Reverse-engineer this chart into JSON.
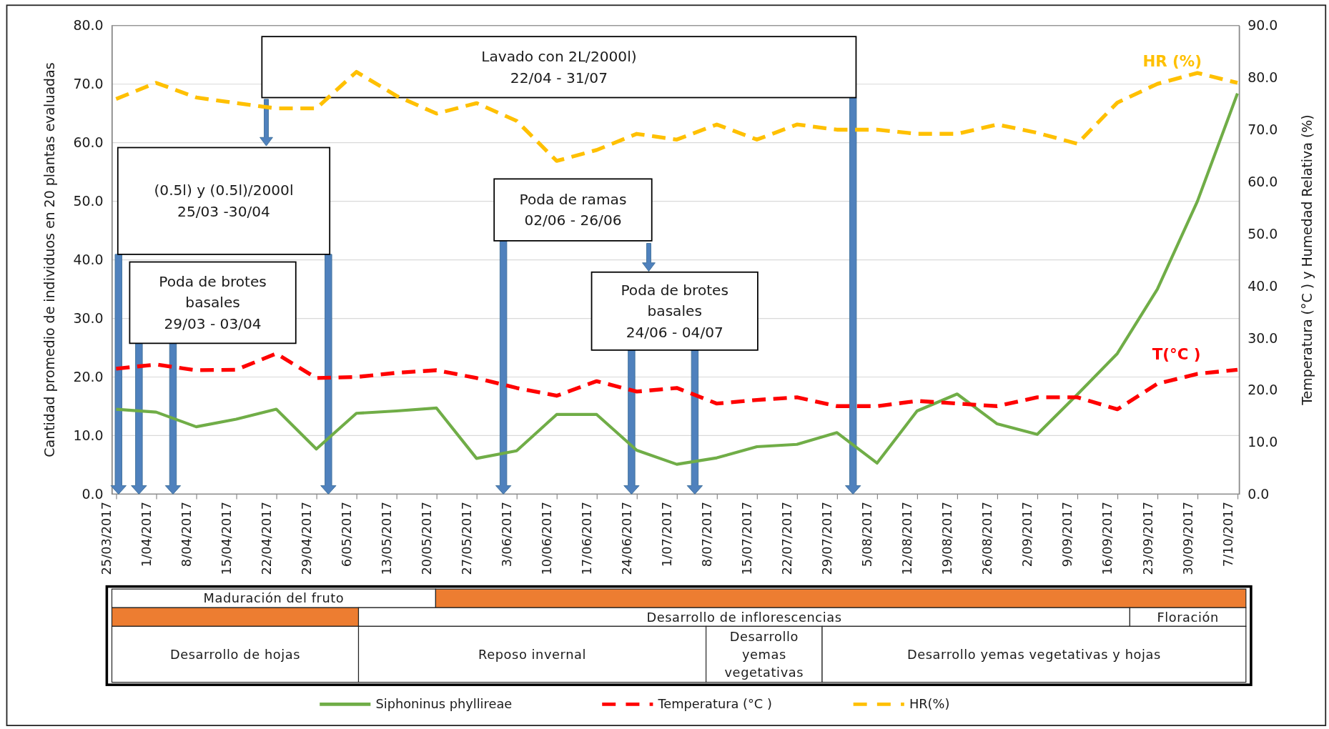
{
  "chart_data": {
    "type": "line",
    "ylabel": "Cantidad promedio de individuos en 20 plantas evaluadas",
    "y2label": "Temperatura (°C )  y Humedad Relativa (%)",
    "categories": [
      "25/03/2017",
      "1/04/2017",
      "8/04/2017",
      "15/04/2017",
      "22/04/2017",
      "29/04/2017",
      "6/05/2017",
      "13/05/2017",
      "20/05/2017",
      "27/05/2017",
      "3/06/2017",
      "10/06/2017",
      "17/06/2017",
      "24/06/2017",
      "1/07/2017",
      "8/07/2017",
      "15/07/2017",
      "22/07/2017",
      "29/07/2017",
      "5/08/2017",
      "12/08/2017",
      "19/08/2017",
      "26/08/2017",
      "2/09/2017",
      "9/09/2017",
      "16/09/2017",
      "23/09/2017",
      "30/09/2017",
      "7/10/2017"
    ],
    "series": [
      {
        "name": "Siphoninus phyllireae",
        "color": "#70ad47",
        "line_style": "solid",
        "values": [
          14.5,
          14.0,
          11.5,
          12.8,
          14.5,
          7.7,
          13.8,
          14.2,
          14.7,
          6.1,
          7.4,
          13.6,
          13.6,
          7.5,
          5.1,
          6.2,
          8.1,
          8.5,
          10.5,
          5.3,
          14.2,
          17.1,
          12.0,
          10.2,
          17.0,
          24.0,
          35.0,
          50.0,
          68.4
        ]
      },
      {
        "name": "Temperatura (°C )",
        "color": "#ff0000",
        "line_style": "dashed",
        "axis": "y2",
        "values": [
          24.1,
          24.9,
          23.8,
          23.9,
          27.0,
          22.3,
          22.5,
          23.3,
          23.8,
          22.3,
          20.4,
          18.9,
          21.7,
          19.7,
          20.4,
          17.4,
          18.1,
          18.6,
          16.9,
          16.9,
          17.9,
          17.4,
          16.9,
          18.6,
          18.6,
          16.3,
          21.2,
          23.1,
          23.9
        ]
      },
      {
        "name": "HR(%)",
        "color": "#ffc000",
        "line_style": "dashed",
        "axis": "y2",
        "values": [
          75.9,
          79.0,
          76.2,
          75.1,
          74.1,
          74.1,
          81.1,
          76.5,
          73.1,
          75.1,
          71.7,
          64.0,
          66.1,
          69.2,
          68.1,
          71.0,
          68.1,
          71.0,
          70.0,
          70.0,
          69.2,
          69.2,
          71.0,
          69.4,
          67.3,
          75.2,
          78.8,
          80.9,
          79.0
        ]
      }
    ],
    "ylim": [
      0,
      80
    ],
    "yticks": [
      {
        "value": 0,
        "label": "0.0"
      },
      {
        "value": 10,
        "label": "10.0"
      },
      {
        "value": 20,
        "label": "20.0"
      },
      {
        "value": 30,
        "label": "30.0"
      },
      {
        "value": 40,
        "label": "40.0"
      },
      {
        "value": 50,
        "label": "50.0"
      },
      {
        "value": 60,
        "label": "60.0"
      },
      {
        "value": 70,
        "label": "70.0"
      },
      {
        "value": 80,
        "label": "80.0"
      }
    ],
    "y2lim": [
      0,
      90
    ],
    "y2ticks": [
      {
        "value": 0,
        "label": "0.0"
      },
      {
        "value": 10,
        "label": "10.0"
      },
      {
        "value": 20,
        "label": "20.0"
      },
      {
        "value": 30,
        "label": "30.0"
      },
      {
        "value": 40,
        "label": "40.0"
      },
      {
        "value": 50,
        "label": "50.0"
      },
      {
        "value": 60,
        "label": "60.0"
      },
      {
        "value": 70,
        "label": "70.0"
      },
      {
        "value": 80,
        "label": "80.0"
      },
      {
        "value": 90,
        "label": "90.0"
      }
    ],
    "grid": "y",
    "legend": "bottom",
    "marker": "none",
    "annotations": [
      "Lavado con 2L/2000l)\n22/04 - 31/07",
      "(0.5l) y (0.5l)/2000l\n25/03 -30/04",
      "Poda de brotes\nbasales\n29/03 - 03/04",
      "Poda de ramas\n02/06 - 26/06",
      "Poda de brotes\nbasales\n24/06 - 04/07",
      "HR (%)",
      "T(°C )",
      "Maduración del fruto",
      "Desarrollo de inflorescencias",
      "Floración",
      "Desarrollo de hojas",
      "Reposo invernal",
      "Desarrollo\nyemas\nvegetativas",
      "Desarrollo yemas vegetativas y hojas"
    ]
  }
}
